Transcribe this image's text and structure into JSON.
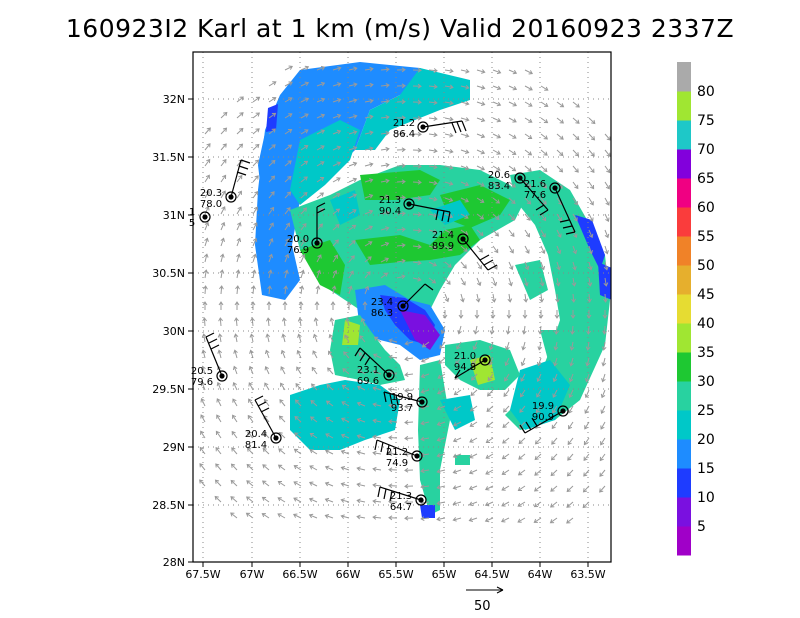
{
  "title": "160923I2 Karl at 1 km (m/s) Valid 20160923 2337Z",
  "axes": {
    "lat_labels": [
      "28N",
      "28.5N",
      "29N",
      "29.5N",
      "30N",
      "30.5N",
      "31N",
      "31.5N",
      "32N"
    ],
    "lon_labels": [
      "67.5W",
      "67W",
      "66.5W",
      "66W",
      "65.5W",
      "65W",
      "64.5W",
      "64W",
      "63.5W"
    ]
  },
  "colorbar": {
    "labels": [
      "5",
      "10",
      "15",
      "20",
      "25",
      "30",
      "35",
      "40",
      "45",
      "50",
      "55",
      "60",
      "65",
      "70",
      "75",
      "80"
    ],
    "colors": [
      "#a000c8",
      "#7a10e0",
      "#1e3cff",
      "#1e8cff",
      "#00c8c8",
      "#28d2a0",
      "#1ec832",
      "#a0e632",
      "#e6dc32",
      "#e6af2d",
      "#f08228",
      "#fa3c3c",
      "#f00082",
      "#8200dc",
      "#1ec8c8",
      "#a0e632",
      "#aaaaaa"
    ]
  },
  "chart_data": {
    "type": "map",
    "stations": [
      {
        "speed": "21.2",
        "rh": "86.4"
      },
      {
        "speed": "20.6",
        "rh": "83.4"
      },
      {
        "speed": "21.6",
        "rh": "77.6"
      },
      {
        "speed": "20.3",
        "rh": "78.0"
      },
      {
        "speed": "1",
        "rh": "5"
      },
      {
        "speed": "21.3",
        "rh": "90.4"
      },
      {
        "speed": "21.4",
        "rh": "89.9"
      },
      {
        "speed": "20.0",
        "rh": "76.9"
      },
      {
        "speed": "23.4",
        "rh": "86.3"
      },
      {
        "speed": "21.0",
        "rh": "94.8"
      },
      {
        "speed": "23.1",
        "rh": "69.6"
      },
      {
        "speed": "20.5",
        "rh": "79.6"
      },
      {
        "speed": "19.9",
        "rh": "93.7"
      },
      {
        "speed": "19.9",
        "rh": "90.9"
      },
      {
        "speed": "20.4",
        "rh": "81.4"
      },
      {
        "speed": "21.2",
        "rh": "74.9"
      },
      {
        "speed": "21.3",
        "rh": "64.7"
      }
    ],
    "scale_vector": "50"
  }
}
